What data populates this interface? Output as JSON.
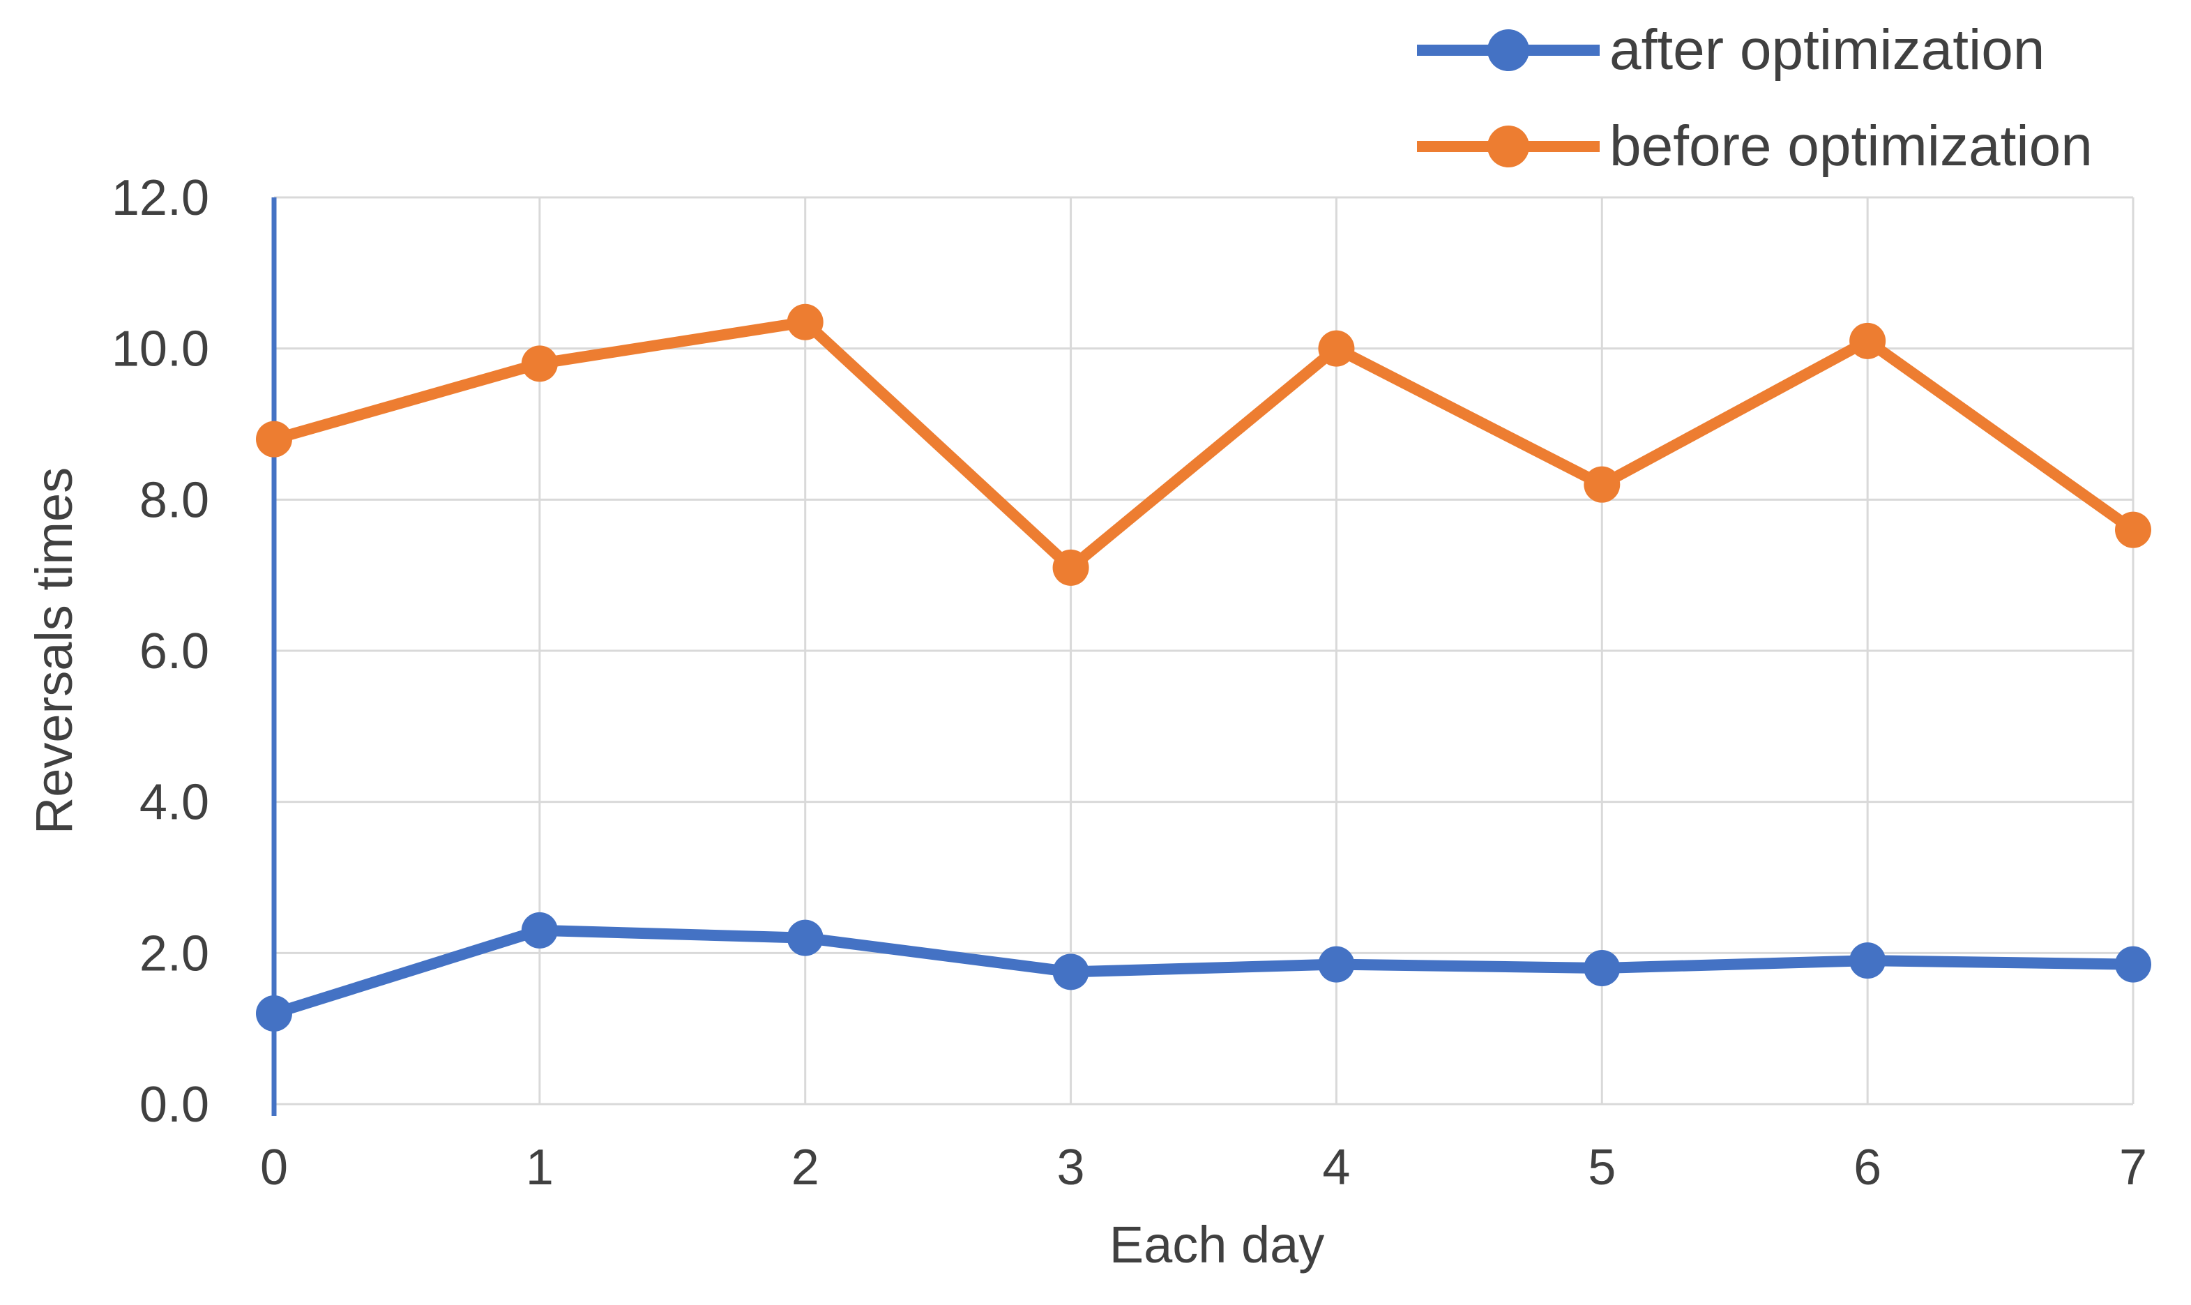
{
  "chart_data": {
    "type": "line",
    "title": "",
    "xlabel": "Each day",
    "ylabel": "Reversals times",
    "x": [
      0,
      1,
      2,
      3,
      4,
      5,
      6,
      7
    ],
    "x_tick_labels": [
      "0",
      "1",
      "2",
      "3",
      "4",
      "5",
      "6",
      "7"
    ],
    "y_ticks": [
      0,
      2,
      4,
      6,
      8,
      10,
      12
    ],
    "y_tick_labels": [
      "0.0",
      "2.0",
      "4.0",
      "6.0",
      "8.0",
      "10.0",
      "12.0"
    ],
    "xlim": [
      0,
      7
    ],
    "ylim": [
      0,
      12
    ],
    "grid": true,
    "legend_position": "top-right",
    "series": [
      {
        "name": "after optimization",
        "color": "#4472C4",
        "values": [
          1.2,
          2.3,
          2.2,
          1.75,
          1.85,
          1.8,
          1.9,
          1.85
        ]
      },
      {
        "name": "before optimization",
        "color": "#ED7D31",
        "values": [
          8.8,
          9.8,
          10.35,
          7.1,
          10.0,
          8.2,
          10.1,
          7.6
        ]
      }
    ],
    "colors": {
      "after_series": "#4472C4",
      "before_series": "#ED7D31",
      "y_axis_line": "#4472C4",
      "gridline": "#D9D9D9",
      "text": "#404040",
      "background": "#FFFFFF"
    }
  }
}
